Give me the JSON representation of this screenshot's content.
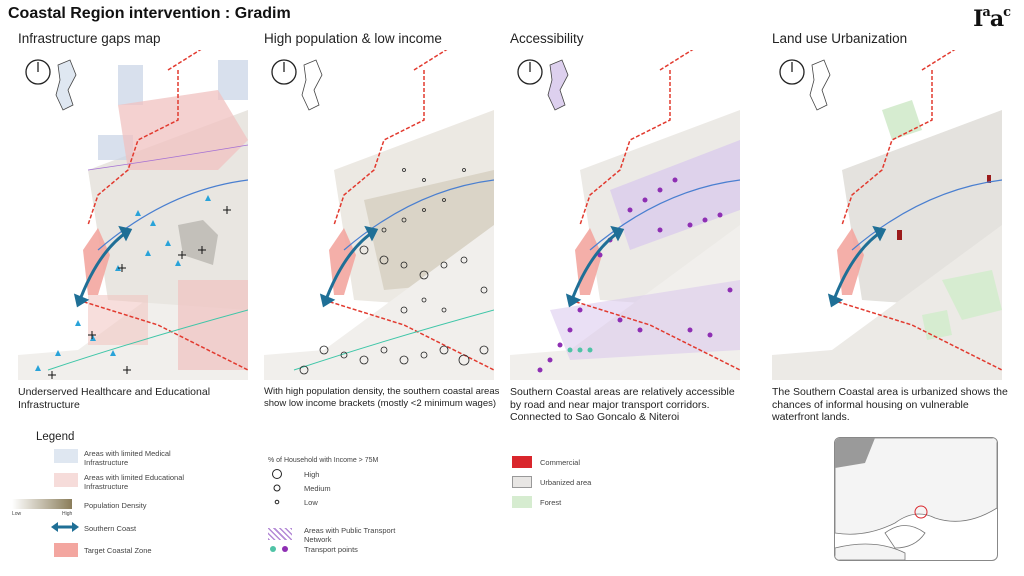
{
  "header": {
    "title": "Coastal Region intervention : Gradim",
    "logo": "IaaC"
  },
  "panels": [
    {
      "title": "Infrastructure gaps map",
      "caption": "Underserved Healthcare and Educational Infrastructure"
    },
    {
      "title": "High population & low income",
      "caption": "With high population density, the southern coastal areas show low income brackets (mostly <2 minimum wages)"
    },
    {
      "title": "Accessibility",
      "caption": "Southern Coastal areas are relatively accessible by road and near major transport corridors. Connected to Sao Goncalo & Niteroi"
    },
    {
      "title": "Land use Urbanization",
      "caption": "The Southern Coastal area is urbanized shows the chances of informal housing on vulnerable waterfront lands."
    }
  ],
  "legend": {
    "title": "Legend",
    "medical": "Areas with limited Medical Infrastructure",
    "educational": "Areas with limited Educational Infrastructure",
    "density": "Population Density",
    "density_low": "Low",
    "density_high": "High",
    "coast": "Southern Coast",
    "target": "Target Coastal Zone",
    "income_title": "% of Household with Income > 75M",
    "high": "High",
    "medium": "Medium",
    "low": "Low",
    "transport_network": "Areas with Public Transport Network",
    "transport_points": "Transport points",
    "commercial": "Commercial",
    "urbanized": "Urbanized area",
    "forest": "Forest"
  },
  "colors": {
    "coast_red": "#e23a2f",
    "coast_arrow": "#1f6f96",
    "target_zone": "#f3a6a0",
    "medical": "#c7d3e6",
    "educational": "#f0c2c0",
    "transport": "#8e2fb3",
    "transport_teal": "#4fc3a6",
    "commercial": "#d9262c",
    "urbanized": "#e8e6e4",
    "forest": "#d6ecd0",
    "density": "#8a7d5a",
    "healthcare_triangle": "#29a3d9"
  }
}
